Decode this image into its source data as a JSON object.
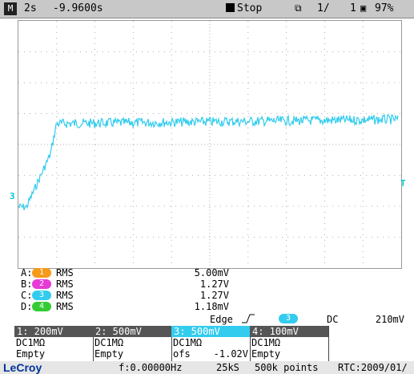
{
  "topbar": {
    "mode_icon": "M",
    "timebase": "2s",
    "delay": "-9.9600s",
    "state": "Stop",
    "page": "1/",
    "page_total": "1",
    "battery": "97%"
  },
  "markers": {
    "left": "3",
    "right": "T"
  },
  "measurements": [
    {
      "label": "A:",
      "channel": "1",
      "color": "#f59a1a",
      "type": "RMS",
      "value": "5.00mV"
    },
    {
      "label": "B:",
      "channel": "2",
      "color": "#e63bd6",
      "type": "RMS",
      "value": "1.27V"
    },
    {
      "label": "C:",
      "channel": "3",
      "color": "#33ccee",
      "type": "RMS",
      "value": "1.27V"
    },
    {
      "label": "D:",
      "channel": "4",
      "color": "#33cc33",
      "type": "RMS",
      "value": "1.18mV"
    }
  ],
  "trigger": {
    "type": "Edge",
    "slope_icon": "rising-edge-icon",
    "channel": "3",
    "coupling": "DC",
    "level": "210mV"
  },
  "channels": [
    {
      "head": "1: 200mV",
      "line1": "DC1MΩ",
      "line2": "Empty"
    },
    {
      "head": "2: 500mV",
      "line1": "DC1MΩ",
      "line2": "Empty"
    },
    {
      "head": "3: 500mV",
      "line1": "DC1MΩ",
      "line2": "ofs",
      "line2b": "-1.02V"
    },
    {
      "head": "4: 100mV",
      "line1": "DC1MΩ",
      "line2": "Empty"
    }
  ],
  "bottombar": {
    "brand": "LeCroy",
    "freq": "f:0.00000Hz",
    "sample_rate": "25kS",
    "points": "500k points",
    "rtc": "RTC:2009/01/"
  },
  "colors": {
    "trace": "#33ccee",
    "grid": "#999999"
  }
}
